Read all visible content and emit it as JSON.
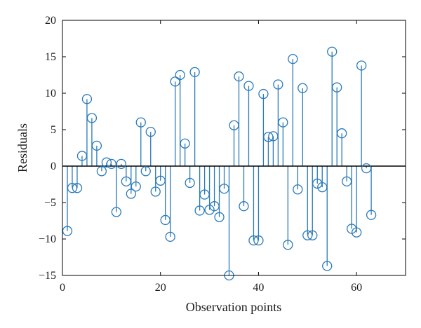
{
  "chart_data": {
    "type": "stem",
    "xlabel": "Observation points",
    "ylabel": "Residuals",
    "xlim": [
      0,
      70
    ],
    "ylim": [
      -15,
      20
    ],
    "xticks": [
      0,
      20,
      40,
      60
    ],
    "yticks": [
      -15,
      -10,
      -5,
      0,
      5,
      10,
      15,
      20
    ],
    "grid": false,
    "marker": "open-circle",
    "series_color": "#2a7ab9",
    "x": [
      1,
      2,
      3,
      4,
      5,
      6,
      7,
      8,
      9,
      10,
      11,
      12,
      13,
      14,
      15,
      16,
      17,
      18,
      19,
      20,
      21,
      22,
      23,
      24,
      25,
      26,
      27,
      28,
      29,
      30,
      31,
      32,
      33,
      34,
      35,
      36,
      37,
      38,
      39,
      40,
      41,
      42,
      43,
      44,
      45,
      46,
      47,
      48,
      49,
      50,
      51,
      52,
      53,
      54,
      55,
      56,
      57,
      58,
      59,
      60,
      61,
      62,
      63
    ],
    "y": [
      -8.9,
      -3.0,
      -3.0,
      1.4,
      9.2,
      6.6,
      2.8,
      -0.7,
      0.5,
      0.3,
      -6.3,
      0.3,
      -2.1,
      -3.8,
      -2.8,
      6.0,
      -0.7,
      4.7,
      -3.5,
      -2.0,
      -7.4,
      -9.7,
      11.6,
      12.5,
      3.1,
      -2.3,
      12.9,
      -6.1,
      -3.9,
      -6.0,
      -5.5,
      -7.0,
      -3.1,
      -15.0,
      5.6,
      12.3,
      -5.5,
      11.0,
      -10.2,
      -10.2,
      9.9,
      4.0,
      4.1,
      11.2,
      6.0,
      -10.8,
      14.7,
      -3.2,
      10.7,
      -9.5,
      -9.5,
      -2.4,
      -2.9,
      -13.7,
      15.7,
      10.8,
      4.5,
      -2.1,
      -8.6,
      -9.1,
      13.8,
      -0.3,
      -6.7
    ]
  }
}
